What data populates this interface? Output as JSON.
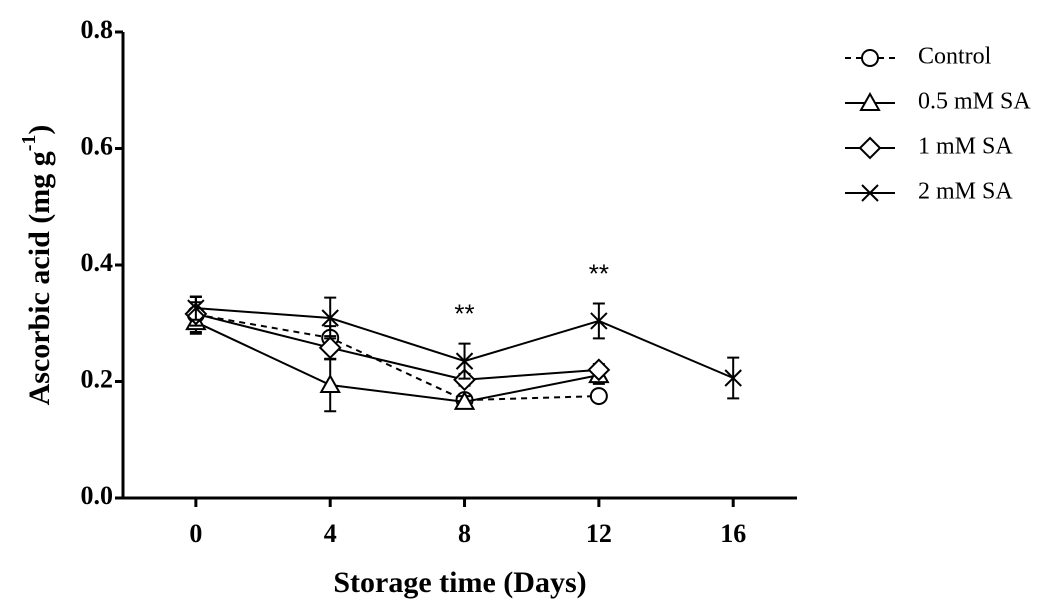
{
  "chart_data": {
    "type": "line",
    "xlabel": "Storage time (Days)",
    "ylabel": {
      "text": "Ascorbic acid (mg g",
      "sup": "-1",
      "end": ")"
    },
    "x": [
      0,
      4,
      8,
      12,
      16
    ],
    "xlim": [
      -2.17,
      17.9
    ],
    "xticks": [
      0,
      4,
      8,
      12,
      16
    ],
    "ylim": [
      0,
      0.8
    ],
    "yticks": [
      {
        "value": 0,
        "label": "0.0"
      },
      0.2,
      0.4,
      0.6,
      0.8
    ],
    "legend": "upper right",
    "series": [
      {
        "name": "Control",
        "color": "#000000",
        "marker": "circle",
        "dash": true,
        "values": [
          0.315,
          0.275,
          0.168,
          0.175,
          null
        ],
        "errors": [
          0.03,
          0.02,
          0.01,
          0.01,
          null
        ]
      },
      {
        "name": "0.5 mM SA",
        "color": "#000000",
        "marker": "triangle",
        "dash": false,
        "values": [
          0.302,
          0.194,
          0.165,
          0.211,
          null
        ],
        "errors": [
          0.02,
          0.045,
          0.01,
          0.015,
          null
        ]
      },
      {
        "name": "1 mM SA",
        "color": "#000000",
        "marker": "diamond",
        "dash": false,
        "values": [
          0.316,
          0.258,
          0.203,
          0.22,
          null
        ],
        "errors": [
          0.02,
          0.02,
          0.01,
          0.01,
          null
        ]
      },
      {
        "name": "2 mM SA",
        "color": "#000000",
        "marker": "cross",
        "dash": false,
        "values": [
          0.326,
          0.309,
          0.235,
          0.304,
          0.206
        ],
        "errors": [
          0.02,
          0.035,
          0.03,
          0.03,
          0.035
        ]
      }
    ],
    "annotations": [
      {
        "x": 8,
        "text": "**"
      },
      {
        "x": 12,
        "text": "**"
      }
    ]
  }
}
